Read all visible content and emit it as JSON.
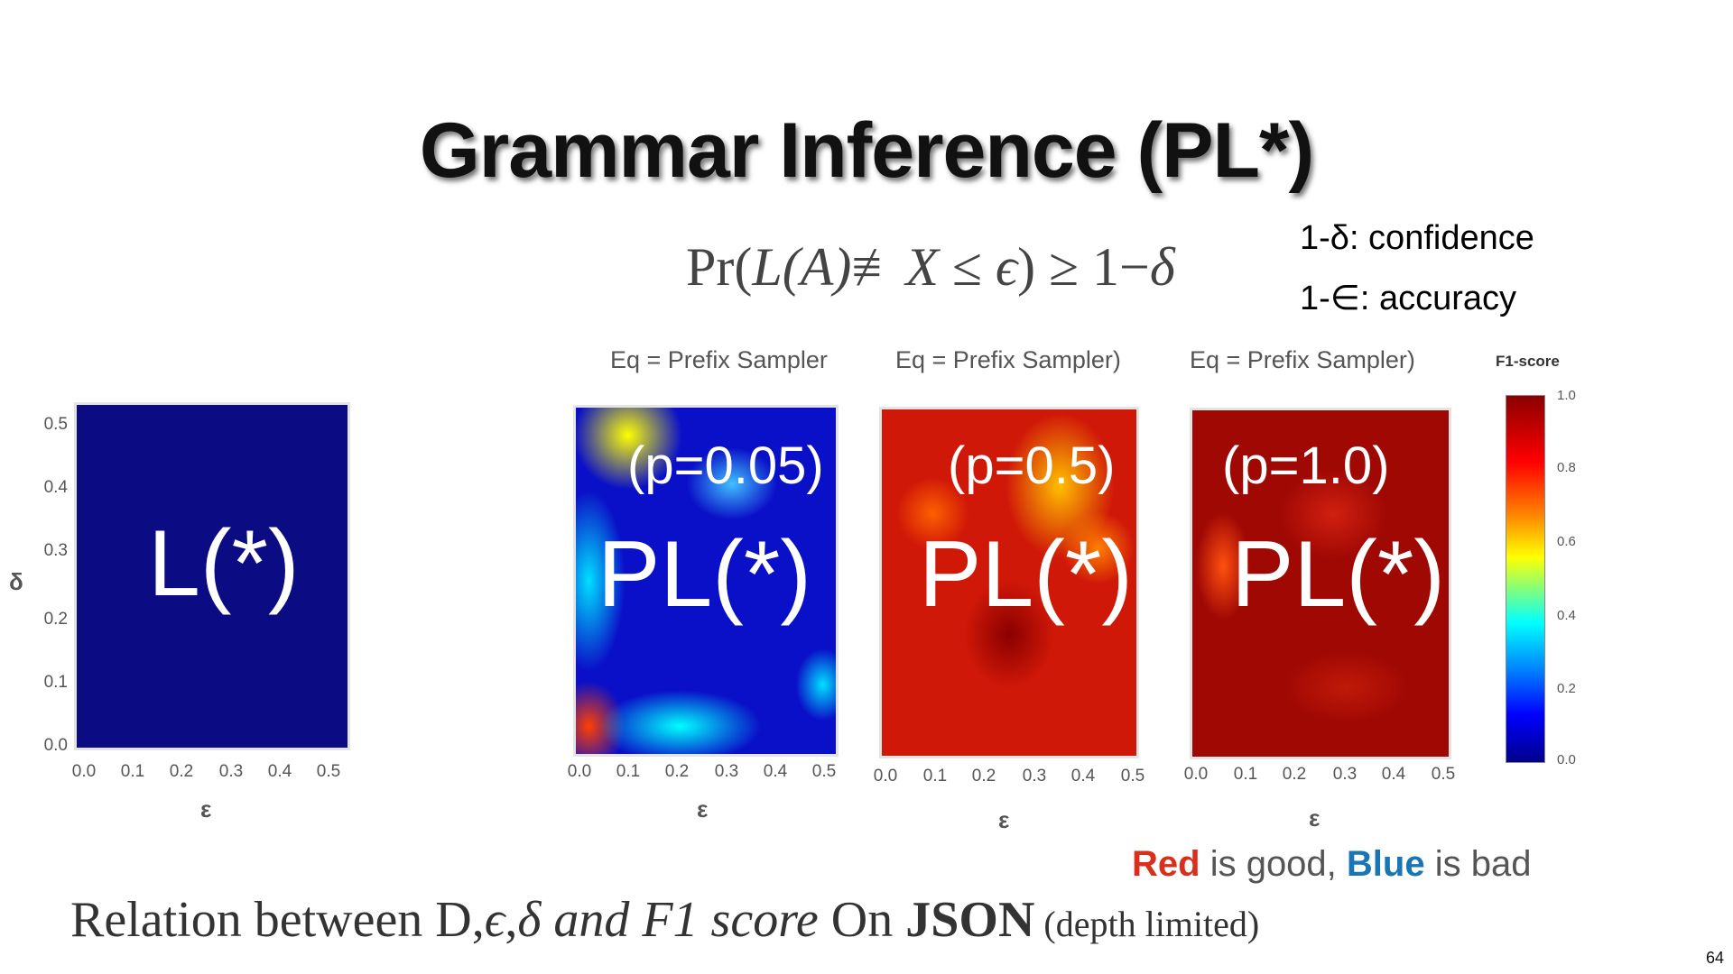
{
  "slide": {
    "title": "Grammar Inference (PL*)",
    "formula": {
      "pr": "Pr(",
      "la": "L(A)",
      "neq": "≢",
      "x": "X",
      "le": " ≤ ",
      "eps": "ϵ",
      "rest": ") ≥ 1−",
      "delta": "δ"
    },
    "legend": {
      "confidence": "1-δ: confidence",
      "accuracy": "1-∈: accuracy"
    },
    "plots": [
      {
        "eq_label": "",
        "overlay_small": "",
        "overlay_big": "L(*)"
      },
      {
        "eq_label": "Eq = Prefix Sampler",
        "overlay_small": "(p=0.05)",
        "overlay_big": "PL(*)"
      },
      {
        "eq_label": "Eq = Prefix Sampler)",
        "overlay_small": "(p=0.5)",
        "overlay_big": "PL(*)"
      },
      {
        "eq_label": "Eq = Prefix Sampler)",
        "overlay_small": "(p=1.0)",
        "overlay_big": "PL(*)"
      }
    ],
    "axes": {
      "y_label": "δ",
      "x_label": "ε",
      "y_ticks": [
        "0.5",
        "0.4",
        "0.3",
        "0.2",
        "0.1",
        "0.0"
      ],
      "x_ticks": [
        "0.0",
        "0.1",
        "0.2",
        "0.3",
        "0.4",
        "0.5"
      ]
    },
    "colorbar": {
      "title": "F1-score",
      "ticks": [
        "1.0",
        "0.8",
        "0.6",
        "0.4",
        "0.2",
        "0.0"
      ]
    },
    "note": {
      "red": "Red",
      "mid": " is good, ",
      "blue": "Blue",
      "end": " is bad"
    },
    "caption": {
      "part1": "Relation between D,",
      "eps": "ϵ",
      "comma": ",",
      "delta": "δ",
      "italic": " and F1 score",
      "on": " On ",
      "json": "JSON",
      "paren": " (depth limited)"
    },
    "page_number": "64",
    "colors": {
      "red_note": "#d8301d",
      "blue_note": "#1a75b5",
      "heat_blue": "#0b0b84",
      "heat_red": "#c8140a"
    }
  }
}
